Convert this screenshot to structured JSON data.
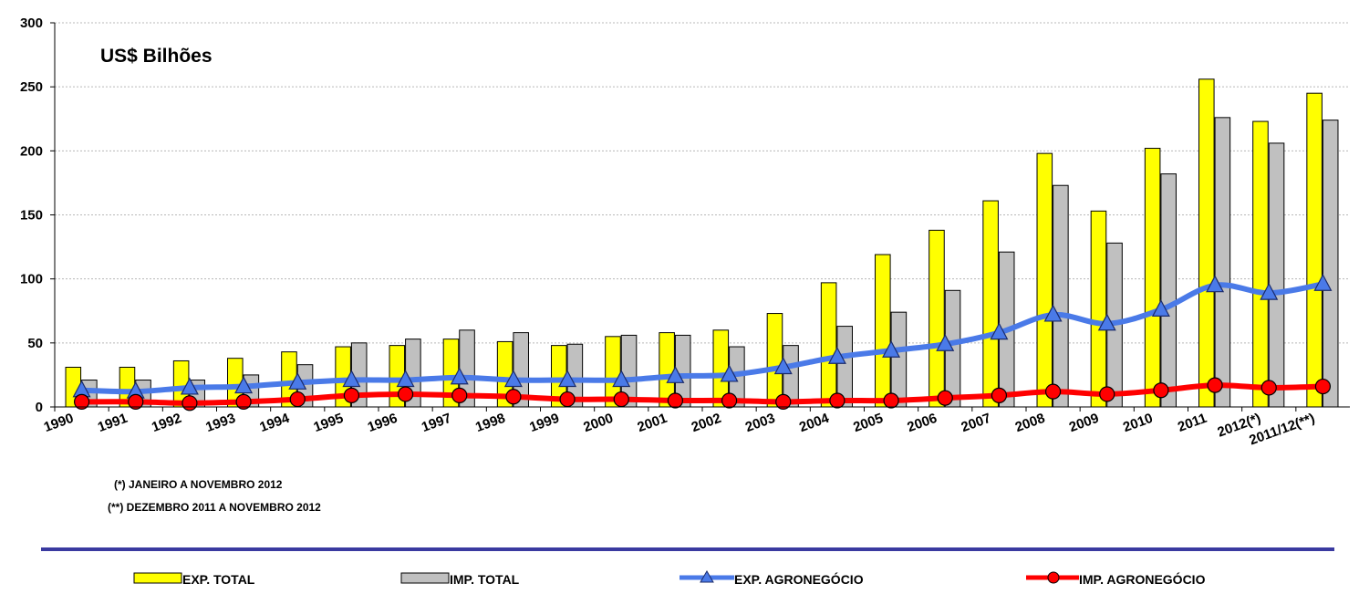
{
  "chart_data": {
    "type": "bar",
    "unit_label": "US$ Bilhões",
    "categories": [
      "1990",
      "1991",
      "1992",
      "1993",
      "1994",
      "1995",
      "1996",
      "1997",
      "1998",
      "1999",
      "2000",
      "2001",
      "2002",
      "2003",
      "2004",
      "2005",
      "2006",
      "2007",
      "2008",
      "2009",
      "2010",
      "2011",
      "2012(*)",
      "2011/12(**)"
    ],
    "ylim": [
      0,
      300
    ],
    "yticks": [
      0,
      50,
      100,
      150,
      200,
      250,
      300
    ],
    "grid": true,
    "legend_position": "bottom",
    "series": [
      {
        "name": "EXP. TOTAL",
        "kind": "bar",
        "color": "#ffff00",
        "values": [
          31,
          31,
          36,
          38,
          43,
          47,
          48,
          53,
          51,
          48,
          55,
          58,
          60,
          73,
          97,
          119,
          138,
          161,
          198,
          153,
          202,
          256,
          223,
          245
        ]
      },
      {
        "name": "IMP. TOTAL",
        "kind": "bar",
        "color": "#c0c0c0",
        "values": [
          21,
          21,
          21,
          25,
          33,
          50,
          53,
          60,
          58,
          49,
          56,
          56,
          47,
          48,
          63,
          74,
          91,
          121,
          173,
          128,
          182,
          226,
          206,
          224
        ]
      },
      {
        "name": "EXP. AGRONEGÓCIO",
        "kind": "line",
        "marker": "triangle",
        "color": "#4a7ae8",
        "values": [
          13,
          12,
          15,
          16,
          19,
          21,
          21,
          23,
          21,
          21,
          21,
          24,
          25,
          31,
          39,
          44,
          49,
          58,
          72,
          65,
          76,
          95,
          89,
          96
        ]
      },
      {
        "name": "IMP. AGRONEGÓCIO",
        "kind": "line",
        "marker": "circle",
        "color": "#ff0000",
        "values": [
          4,
          4,
          3,
          4,
          6,
          9,
          10,
          9,
          8,
          6,
          6,
          5,
          5,
          4,
          5,
          5,
          7,
          9,
          12,
          10,
          13,
          17,
          15,
          16
        ]
      }
    ],
    "annotations": [
      "(*) JANEIRO A NOVEMBRO 2012",
      "(**) DEZEMBRO 2011 A NOVEMBRO 2012"
    ]
  }
}
